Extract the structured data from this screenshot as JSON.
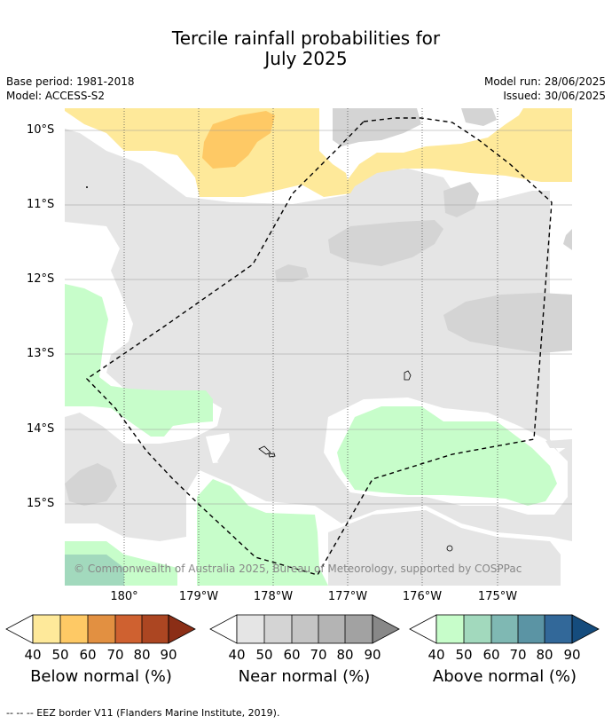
{
  "title_line1": "Tercile rainfall probabilities for",
  "title_line2": "July 2025",
  "meta": {
    "base_period": "Base period: 1981-2018",
    "model": "Model: ACCESS-S2",
    "model_run": "Model run: 28/06/2025",
    "issued": "Issued: 30/06/2025"
  },
  "map": {
    "lat_labels": [
      "10°S",
      "11°S",
      "12°S",
      "13°S",
      "14°S",
      "15°S"
    ],
    "lon_labels": [
      "180°",
      "179°W",
      "178°W",
      "177°W",
      "176°W",
      "175°W"
    ],
    "copyright": "© Commonwealth of Australia 2025, Bureau of Meteorology, supported by COSPPac",
    "colors": {
      "near_bg": "#e5e5e5",
      "near_dark": "#d4d4d4",
      "below": "#fee99a",
      "below_dark": "#fec965",
      "above": "#c7fdca",
      "above_dark": "#a2d9bd"
    }
  },
  "colorbars": {
    "ticks": [
      "40",
      "50",
      "60",
      "70",
      "80",
      "90"
    ],
    "below": {
      "label": "Below normal (%)",
      "colors": [
        "#ffffff",
        "#fee99a",
        "#fec965",
        "#e29041",
        "#cf6130",
        "#ac4622",
        "#8b2e16"
      ]
    },
    "near": {
      "label": "Near normal (%)",
      "colors": [
        "#ffffff",
        "#e5e5e5",
        "#d4d4d4",
        "#c5c5c5",
        "#b4b4b4",
        "#a2a2a2",
        "#888888"
      ]
    },
    "above": {
      "label": "Above normal (%)",
      "colors": [
        "#ffffff",
        "#c7fdca",
        "#a2d9bd",
        "#7fb8b3",
        "#5b94a4",
        "#326899",
        "#154c7d"
      ]
    }
  },
  "footer": "--  --  -- EEZ border V11 (Flanders Marine Institute, 2019)."
}
